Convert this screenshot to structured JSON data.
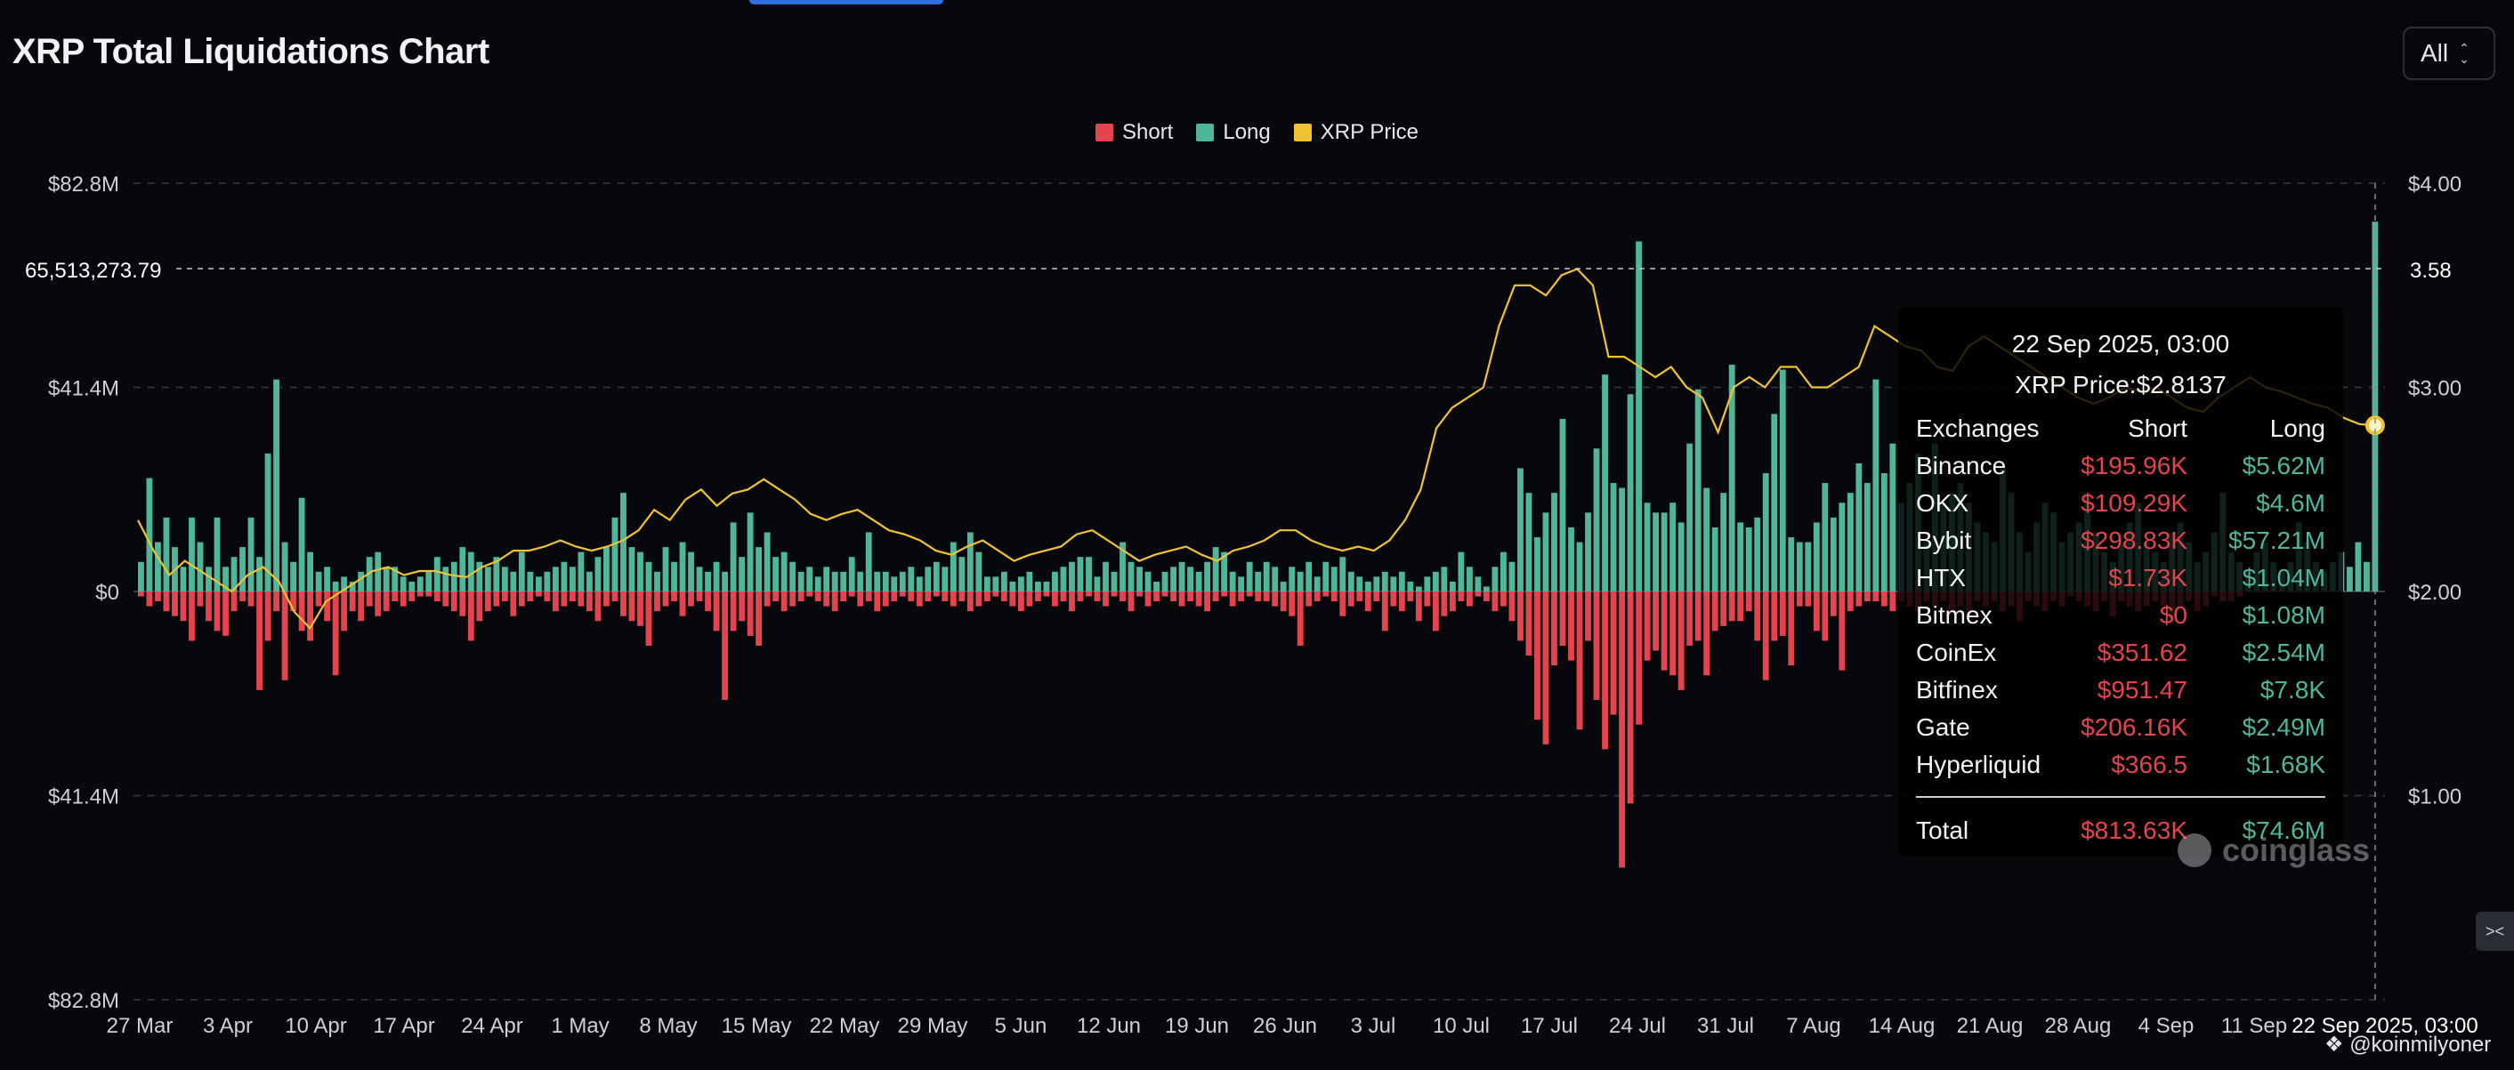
{
  "header": {
    "title": "XRP Total Liquidations Chart",
    "range": "All"
  },
  "legend": [
    {
      "label": "Short",
      "color": "#e5434d"
    },
    {
      "label": "Long",
      "color": "#4fb69a"
    },
    {
      "label": "XRP Price",
      "color": "#f1c232"
    }
  ],
  "crosshair_label": "65,513,273.79",
  "crosshair_price_label": "3.58",
  "x_cursor_label": "22 Sep 2025, 03:00",
  "tooltip": {
    "date": "22 Sep 2025, 03:00",
    "price": "XRP Price:$2.8137",
    "headers": {
      "exchange": "Exchanges",
      "short": "Short",
      "long": "Long"
    },
    "rows": [
      {
        "exchange": "Binance",
        "short": "$195.96K",
        "long": "$5.62M"
      },
      {
        "exchange": "OKX",
        "short": "$109.29K",
        "long": "$4.6M"
      },
      {
        "exchange": "Bybit",
        "short": "$298.83K",
        "long": "$57.21M"
      },
      {
        "exchange": "HTX",
        "short": "$1.73K",
        "long": "$1.04M"
      },
      {
        "exchange": "Bitmex",
        "short": "$0",
        "long": "$1.08M"
      },
      {
        "exchange": "CoinEx",
        "short": "$351.62",
        "long": "$2.54M"
      },
      {
        "exchange": "Bitfinex",
        "short": "$951.47",
        "long": "$7.8K"
      },
      {
        "exchange": "Gate",
        "short": "$206.16K",
        "long": "$2.49M"
      },
      {
        "exchange": "Hyperliquid",
        "short": "$366.5",
        "long": "$1.68K"
      }
    ],
    "total": {
      "label": "Total",
      "short": "$813.63K",
      "long": "$74.6M"
    }
  },
  "watermark": "coinglass",
  "credit": "@koinmilyoner",
  "chart_data": {
    "type": "bar",
    "x_ticks": [
      "27 Mar",
      "3 Apr",
      "10 Apr",
      "17 Apr",
      "24 Apr",
      "1 May",
      "8 May",
      "15 May",
      "22 May",
      "29 May",
      "5 Jun",
      "12 Jun",
      "19 Jun",
      "26 Jun",
      "3 Jul",
      "10 Jul",
      "17 Jul",
      "24 Jul",
      "31 Jul",
      "7 Aug",
      "14 Aug",
      "21 Aug",
      "28 Aug",
      "4 Sep",
      "11 Sep"
    ],
    "y_left_ticks": [
      "$82.8M",
      "$41.4M",
      "$0",
      "$41.4M",
      "$82.8M"
    ],
    "y_right_ticks": [
      "$4.00",
      "$3.00",
      "$2.00",
      "$1.00"
    ],
    "ylim_left": [
      -82.8,
      82.8
    ],
    "ylim_right": [
      0,
      4
    ],
    "unit_left": "$M",
    "series": [
      {
        "name": "Long",
        "values": [
          6,
          23,
          10,
          15,
          9,
          5,
          15,
          10,
          5,
          15,
          5,
          7,
          9,
          15,
          7,
          28,
          43,
          10,
          6,
          19,
          8,
          4,
          5,
          2,
          3,
          2,
          4,
          7,
          8,
          5,
          5,
          3,
          2,
          3,
          4,
          7,
          5,
          6,
          9,
          8,
          6,
          5,
          7,
          5,
          4,
          8,
          4,
          3,
          4,
          5,
          6,
          5,
          8,
          4,
          7,
          9,
          15,
          20,
          9,
          8,
          6,
          4,
          9,
          6,
          10,
          8,
          5,
          4,
          6,
          4,
          14,
          7,
          16,
          9,
          12,
          7,
          8,
          6,
          4,
          5,
          3,
          5,
          4,
          4,
          7,
          4,
          12,
          4,
          4,
          3,
          4,
          5,
          3,
          5,
          6,
          5,
          10,
          7,
          12,
          8,
          3,
          3,
          4,
          2,
          3,
          4,
          2,
          2,
          4,
          5,
          6,
          7,
          7,
          3,
          6,
          4,
          10,
          6,
          5,
          4,
          2,
          4,
          5,
          6,
          5,
          4,
          6,
          9,
          8,
          4,
          3,
          6,
          4,
          6,
          5,
          2,
          5,
          4,
          6,
          3,
          6,
          5,
          7,
          4,
          3,
          2,
          3,
          4,
          3,
          4,
          2,
          1,
          3,
          4,
          5,
          2,
          8,
          5,
          3,
          1,
          5,
          8,
          6,
          25,
          20,
          11,
          16,
          20,
          35,
          13,
          10,
          16,
          29,
          44,
          22,
          21,
          40,
          71,
          18,
          16,
          16,
          18,
          14,
          30,
          41,
          21,
          13,
          20,
          46,
          14,
          13,
          15,
          24,
          36,
          45,
          11,
          10,
          10,
          14,
          22,
          15,
          18,
          20,
          26,
          22,
          43,
          24,
          30,
          18,
          22,
          28,
          10,
          30,
          18,
          20,
          22,
          18,
          14,
          12,
          10,
          25,
          20,
          12,
          8,
          14,
          18,
          16,
          10,
          12,
          14,
          20,
          12,
          8,
          6,
          10,
          14,
          18,
          10,
          8,
          6,
          12,
          14,
          10,
          6,
          8,
          12,
          20,
          8,
          6,
          4,
          8,
          10,
          6,
          4,
          6,
          14,
          10,
          6,
          4,
          6,
          8,
          5,
          10,
          6,
          75
        ]
      },
      {
        "name": "Short",
        "values": [
          -1,
          -3,
          -2,
          -4,
          -5,
          -6,
          -10,
          -3,
          -6,
          -8,
          -9,
          -4,
          -2,
          -3,
          -20,
          -10,
          -4,
          -18,
          -4,
          -8,
          -10,
          -3,
          -6,
          -17,
          -8,
          -4,
          -6,
          -3,
          -5,
          -4,
          -2,
          -3,
          -2,
          -1,
          -1,
          -2,
          -3,
          -4,
          -5,
          -10,
          -6,
          -4,
          -3,
          -2,
          -5,
          -3,
          -2,
          -1,
          -2,
          -4,
          -3,
          -2,
          -3,
          -4,
          -6,
          -3,
          -2,
          -5,
          -6,
          -7,
          -11,
          -4,
          -3,
          -2,
          -5,
          -3,
          -2,
          -4,
          -8,
          -22,
          -8,
          -6,
          -9,
          -11,
          -3,
          -2,
          -4,
          -3,
          -2,
          -1,
          -2,
          -3,
          -4,
          -2,
          -1,
          -3,
          -2,
          -4,
          -3,
          -2,
          -1,
          -2,
          -3,
          -2,
          -1,
          -2,
          -3,
          -2,
          -4,
          -3,
          -2,
          -1,
          -2,
          -3,
          -4,
          -3,
          -2,
          -1,
          -3,
          -2,
          -4,
          -2,
          -1,
          -2,
          -3,
          -1,
          -2,
          -4,
          -1,
          -3,
          -2,
          -1,
          -2,
          -3,
          -2,
          -3,
          -4,
          -2,
          -1,
          -3,
          -2,
          -1,
          -2,
          -2,
          -3,
          -4,
          -5,
          -11,
          -3,
          -2,
          -1,
          -2,
          -5,
          -3,
          -2,
          -4,
          -2,
          -8,
          -3,
          -4,
          -2,
          -6,
          -3,
          -8,
          -5,
          -4,
          -2,
          -3,
          -1,
          -2,
          -4,
          -3,
          -6,
          -10,
          -13,
          -26,
          -31,
          -15,
          -11,
          -14,
          -28,
          -10,
          -22,
          -32,
          -25,
          -56,
          -43,
          -27,
          -14,
          -12,
          -16,
          -17,
          -20,
          -11,
          -10,
          -17,
          -8,
          -7,
          -6,
          -6,
          -4,
          -10,
          -18,
          -10,
          -9,
          -15,
          -3,
          -3,
          -8,
          -10,
          -5,
          -16,
          -4,
          -3,
          -2,
          -2,
          -3,
          -4,
          -2,
          -3,
          -4,
          -2,
          -3,
          -2,
          -4,
          -3,
          -5,
          -2,
          -3,
          -2,
          -4,
          -3,
          -6,
          -2,
          -3,
          -4,
          -2,
          -3,
          -1,
          -2,
          -3,
          -4,
          -2,
          -5,
          -2,
          -3,
          -4,
          -3,
          -2,
          -3,
          -6,
          -3,
          -2,
          -4,
          -3,
          -1,
          -2,
          -2,
          -1
        ]
      },
      {
        "name": "XRP Price",
        "values": [
          2.35,
          2.2,
          2.08,
          2.15,
          2.1,
          2.05,
          2.0,
          2.08,
          2.12,
          2.05,
          1.9,
          1.82,
          1.95,
          2.0,
          2.05,
          2.1,
          2.12,
          2.08,
          2.1,
          2.1,
          2.08,
          2.07,
          2.12,
          2.15,
          2.2,
          2.2,
          2.22,
          2.25,
          2.22,
          2.2,
          2.22,
          2.25,
          2.3,
          2.4,
          2.35,
          2.45,
          2.5,
          2.42,
          2.48,
          2.5,
          2.55,
          2.5,
          2.45,
          2.38,
          2.35,
          2.38,
          2.4,
          2.35,
          2.3,
          2.28,
          2.25,
          2.2,
          2.18,
          2.22,
          2.25,
          2.2,
          2.15,
          2.18,
          2.2,
          2.22,
          2.28,
          2.3,
          2.25,
          2.2,
          2.15,
          2.18,
          2.2,
          2.22,
          2.18,
          2.15,
          2.2,
          2.22,
          2.25,
          2.3,
          2.3,
          2.25,
          2.22,
          2.2,
          2.22,
          2.2,
          2.25,
          2.35,
          2.5,
          2.8,
          2.9,
          2.95,
          3.0,
          3.3,
          3.5,
          3.5,
          3.45,
          3.55,
          3.58,
          3.5,
          3.15,
          3.15,
          3.1,
          3.05,
          3.1,
          3.0,
          2.95,
          2.78,
          3.0,
          3.05,
          3.0,
          3.1,
          3.1,
          3.0,
          3.0,
          3.05,
          3.1,
          3.3,
          3.25,
          3.2,
          3.18,
          3.1,
          3.08,
          3.2,
          3.25,
          3.2,
          3.15,
          3.1,
          3.05,
          3.0,
          2.95,
          2.92,
          2.95,
          3.0,
          2.98,
          3.0,
          2.95,
          2.9,
          2.88,
          2.95,
          3.0,
          3.05,
          3.0,
          2.98,
          2.95,
          2.92,
          2.9,
          2.85,
          2.82,
          2.8137
        ]
      }
    ],
    "highlighted_point": {
      "x": "22 Sep 2025, 03:00",
      "long": 74.6,
      "short": 0.81363,
      "price": 2.8137
    },
    "grid": true,
    "legend_position": "top-center"
  }
}
